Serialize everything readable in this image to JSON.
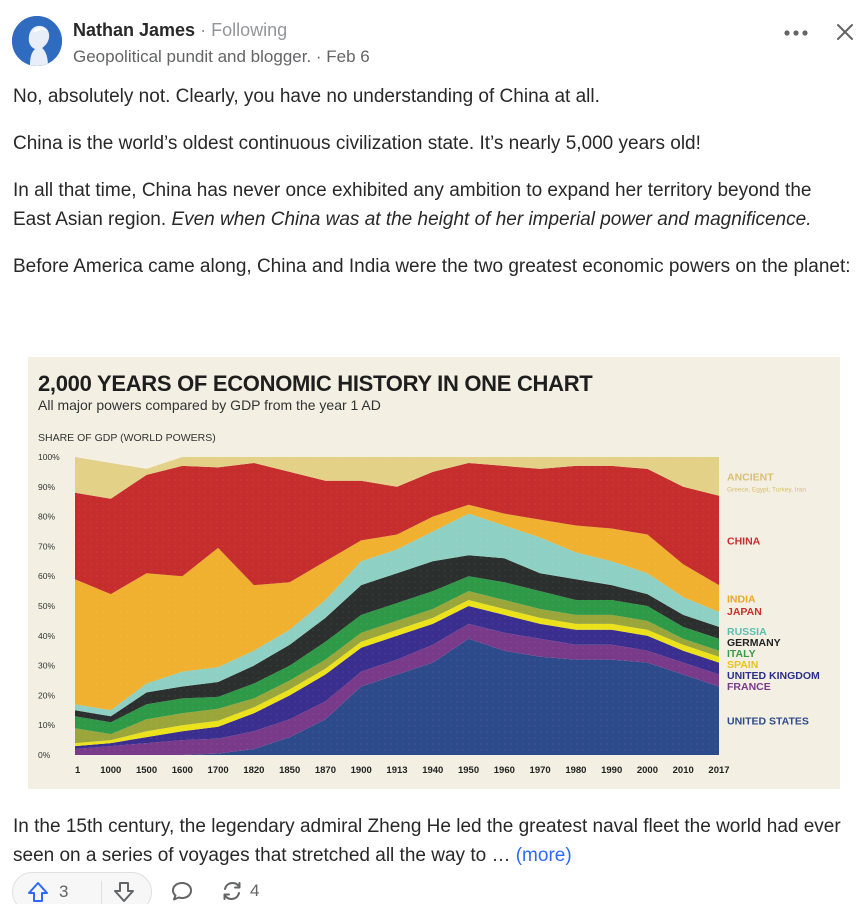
{
  "post": {
    "author_name": "Nathan James",
    "follow_status": "· Following",
    "credential": "Geopolitical pundit and blogger. · Feb 6",
    "paragraphs": {
      "p1": "No, absolutely not. Clearly, you have no understanding of China at all.",
      "p2": "China is the world’s oldest continuous civilization state. It’s nearly 5,000 years old!",
      "p3_plain": "In all that time, China has never once exhibited any ambition to expand her territory beyond the East Asian region. ",
      "p3_italic": "Even when China was at the height of her imperial power and magnificence.",
      "p4": "Before America came along, China and India were the two greatest economic powers on the planet:"
    },
    "truncated_text": "In the 15th century, the legendary admiral Zheng He led the greatest naval fleet the world had ever seen on a series of voyages that stretched all the way to … ",
    "more_label": "(more)"
  },
  "actions": {
    "upvote_count": "3",
    "share_count": "4"
  },
  "icons": {
    "more": "more-horizontal-icon",
    "close": "close-icon",
    "upvote": "arrow-up-icon",
    "downvote": "arrow-down-icon",
    "comment": "comment-bubble-icon",
    "share": "share-cycle-icon"
  },
  "colors": {
    "link": "#2e69ff",
    "text": "#282829",
    "muted": "#636466"
  },
  "chart_data": {
    "type": "area",
    "stacked": true,
    "title": "2,000 YEARS OF ECONOMIC HISTORY IN ONE CHART",
    "subtitle": "All major powers compared by GDP from the year 1 AD",
    "ylabel": "SHARE OF GDP (WORLD POWERS)",
    "ylim": [
      0,
      100
    ],
    "yticks": [
      "0%",
      "10%",
      "20%",
      "30%",
      "40%",
      "50%",
      "60%",
      "70%",
      "80%",
      "90%",
      "100%"
    ],
    "x": [
      "1",
      "1000",
      "1500",
      "1600",
      "1700",
      "1820",
      "1850",
      "1870",
      "1900",
      "1913",
      "1940",
      "1950",
      "1960",
      "1970",
      "1980",
      "1990",
      "2000",
      "2010",
      "2017"
    ],
    "series": [
      {
        "name": "UNITED STATES",
        "color": "#2d4a8a",
        "values": [
          0,
          0,
          0,
          0,
          0.5,
          2,
          6,
          12,
          23,
          27,
          31,
          39,
          35,
          33,
          32,
          32,
          31,
          27,
          23
        ]
      },
      {
        "name": "FRANCE",
        "color": "#7a3a8a",
        "values": [
          2,
          3,
          4,
          5,
          5,
          6,
          6,
          6,
          5,
          5,
          6,
          5,
          6,
          6,
          5,
          5,
          4,
          4,
          4
        ]
      },
      {
        "name": "UNITED KINGDOM",
        "color": "#3a2f8f",
        "values": [
          1,
          1,
          2,
          3,
          4,
          6,
          8,
          9,
          8,
          8,
          7,
          6,
          6,
          5,
          5,
          5,
          5,
          4,
          4
        ]
      },
      {
        "name": "SPAIN",
        "color": "#ece21c",
        "values": [
          1,
          1,
          2,
          2,
          2,
          2,
          2,
          2,
          2,
          2,
          2,
          2,
          2,
          2,
          2,
          2,
          2,
          2,
          2
        ]
      },
      {
        "name": "ITALY",
        "color": "#9aa53a",
        "values": [
          5,
          2,
          4,
          4,
          4,
          3,
          3,
          3,
          3,
          3,
          3,
          3,
          3,
          3,
          3,
          3,
          3,
          2,
          2
        ]
      },
      {
        "name": "GERMANY",
        "color": "#2e9a48",
        "values": [
          4,
          4,
          5,
          5,
          4,
          5,
          5,
          6,
          6,
          6,
          6,
          5,
          6,
          6,
          5,
          5,
          5,
          4,
          4
        ]
      },
      {
        "name": "RUSSIA",
        "color": "#2b2f2e",
        "values": [
          2,
          2,
          4,
          4,
          5,
          6,
          7,
          8,
          10,
          10,
          10,
          7,
          8,
          6,
          7,
          5,
          4,
          4,
          4
        ]
      },
      {
        "name": "JAPAN",
        "color": "#8ed1c4",
        "values": [
          2,
          2,
          3,
          5,
          5,
          5,
          5,
          6,
          8,
          8,
          10,
          14,
          11,
          12,
          9,
          8,
          7,
          6,
          5
        ]
      },
      {
        "name": "INDIA",
        "color": "#f0b030",
        "values": [
          42,
          39,
          37,
          32,
          40,
          22,
          16,
          13,
          7,
          5,
          5,
          3,
          4,
          6,
          9,
          11,
          13,
          11,
          9
        ]
      },
      {
        "name": "CHINA",
        "color": "#c62d2d",
        "values": [
          29,
          32,
          33,
          37,
          27,
          41,
          37,
          27,
          20,
          16,
          15,
          14,
          16,
          17,
          20,
          21,
          22,
          26,
          30
        ]
      },
      {
        "name": "ANCIENT",
        "sublabel": "Greece, Egypt, Turkey, Iran",
        "color": "#e3d188",
        "values": [
          12,
          12,
          2,
          3,
          3.5,
          2,
          5,
          8,
          8,
          10,
          5,
          2,
          3,
          4,
          3,
          3,
          4,
          10,
          13
        ]
      }
    ],
    "label_colors": {
      "ANCIENT": "#d8c070",
      "CHINA": "#c62d2d",
      "INDIA": "#e6a92a",
      "JAPAN": "#c9302c",
      "RUSSIA": "#5fbcad",
      "GERMANY": "#222222",
      "ITALY": "#3d9a48",
      "SPAIN": "#e8c41a",
      "UNITED KINGDOM": "#2c2f88",
      "FRANCE": "#7a3a8a",
      "UNITED STATES": "#2d4a8a"
    },
    "grid": false,
    "legend": "right"
  }
}
